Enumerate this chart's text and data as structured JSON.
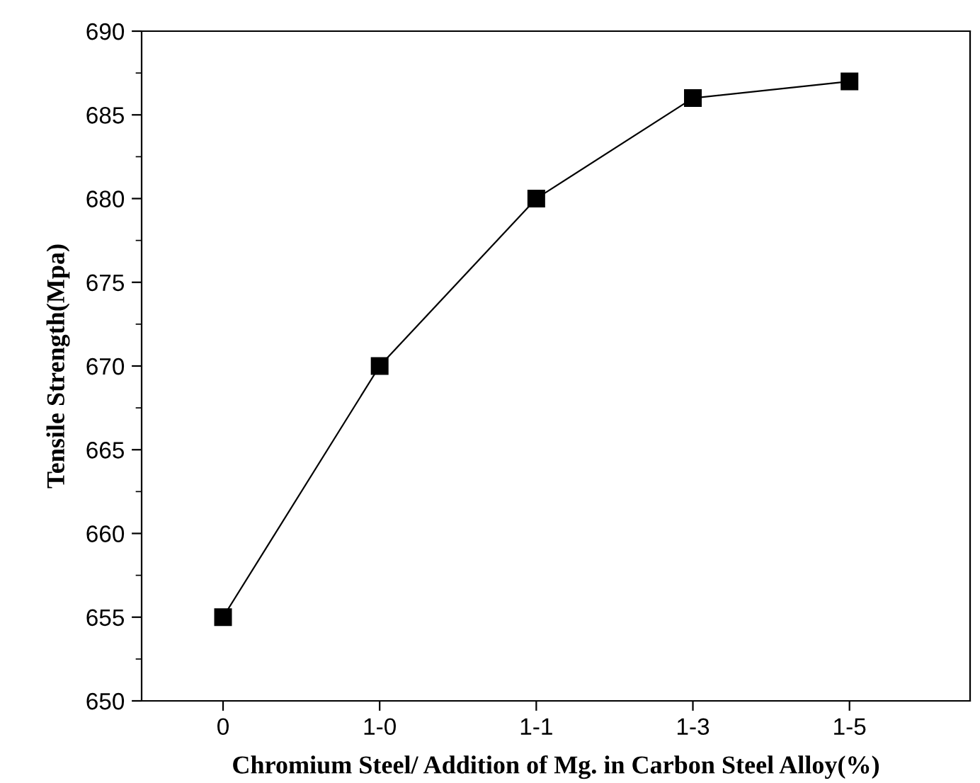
{
  "chart_data": {
    "type": "line",
    "xlabel": "Chromium Steel/ Addition of Mg. in Carbon Steel Alloy(%)",
    "ylabel": "Tensile Strength(Mpa)",
    "categories": [
      "0",
      "1-0",
      "1-1",
      "1-3",
      "1-5"
    ],
    "series": [
      {
        "color": "#000000",
        "values": [
          655,
          670,
          680,
          686,
          687
        ]
      }
    ],
    "ylim": [
      650,
      690
    ],
    "yticks": [
      650,
      655,
      660,
      665,
      670,
      675,
      680,
      685,
      690
    ],
    "marker": "square",
    "line_style": "solid",
    "grid": false,
    "legend": false
  }
}
